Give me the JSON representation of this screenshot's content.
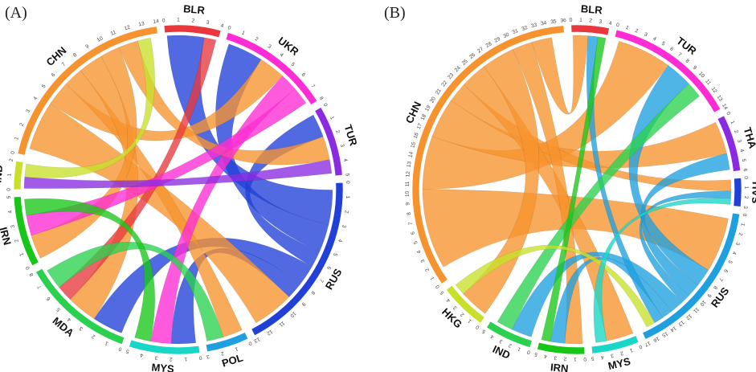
{
  "chart_data": [
    {
      "type": "chord",
      "panel": "(A)",
      "segments": [
        {
          "name": "BLR",
          "color": "#e8383d",
          "size": 4
        },
        {
          "name": "UKR",
          "color": "#ff2bd4",
          "size": 8
        },
        {
          "name": "TUR",
          "color": "#8a2be2",
          "size": 5
        },
        {
          "name": "RUS",
          "color": "#2040d8",
          "size": 13
        },
        {
          "name": "POL",
          "color": "#1ea0e0",
          "size": 3
        },
        {
          "name": "MYS",
          "color": "#18d6c8",
          "size": 5
        },
        {
          "name": "MDA",
          "color": "#2ad14e",
          "size": 8
        },
        {
          "name": "IRN",
          "color": "#18c618",
          "size": 5
        },
        {
          "name": "IND",
          "color": "#c8e02a",
          "size": 2
        },
        {
          "name": "CHN",
          "color": "#f7932e",
          "size": 14
        }
      ],
      "flows": [
        {
          "from": "RUS",
          "to": "BLR",
          "value": 2.5
        },
        {
          "from": "RUS",
          "to": "UKR",
          "value": 2
        },
        {
          "from": "RUS",
          "to": "TUR",
          "value": 1.2
        },
        {
          "from": "RUS",
          "to": "MDA",
          "value": 1.5
        },
        {
          "from": "RUS",
          "to": "MYS",
          "value": 1.2
        },
        {
          "from": "CHN",
          "to": "RUS",
          "value": 3
        },
        {
          "from": "CHN",
          "to": "UKR",
          "value": 1.5
        },
        {
          "from": "CHN",
          "to": "POL",
          "value": 1.2
        },
        {
          "from": "CHN",
          "to": "MDA",
          "value": 1.5
        },
        {
          "from": "CHN",
          "to": "IRN",
          "value": 1.2
        },
        {
          "from": "CHN",
          "to": "TUR",
          "value": 1.2
        },
        {
          "from": "BLR",
          "to": "MDA",
          "value": 0.8
        },
        {
          "from": "UKR",
          "to": "MYS",
          "value": 1
        },
        {
          "from": "UKR",
          "to": "IRN",
          "value": 1
        },
        {
          "from": "TUR",
          "to": "IND",
          "value": 0.7
        },
        {
          "from": "MDA",
          "to": "POL",
          "value": 1
        },
        {
          "from": "IRN",
          "to": "MYS",
          "value": 0.8
        },
        {
          "from": "IND",
          "to": "CHN",
          "value": 0.8
        }
      ]
    },
    {
      "type": "chord",
      "panel": "(B)",
      "segments": [
        {
          "name": "BLR",
          "color": "#e8383d",
          "size": 4
        },
        {
          "name": "TUR",
          "color": "#ff2bd4",
          "size": 14
        },
        {
          "name": "THA",
          "color": "#8a2be2",
          "size": 6
        },
        {
          "name": "SAU",
          "color": "#2040d8",
          "size": 3
        },
        {
          "name": "RUS",
          "color": "#1ea0e0",
          "size": 17
        },
        {
          "name": "MYS",
          "color": "#18d6c8",
          "size": 5
        },
        {
          "name": "IRN",
          "color": "#18c618",
          "size": 5
        },
        {
          "name": "IND",
          "color": "#2ad14e",
          "size": 5
        },
        {
          "name": "HKG",
          "color": "#c8e02a",
          "size": 5
        },
        {
          "name": "CHN",
          "color": "#f7932e",
          "size": 36
        }
      ],
      "flows": [
        {
          "from": "CHN",
          "to": "RUS",
          "value": 6
        },
        {
          "from": "CHN",
          "to": "TUR",
          "value": 4
        },
        {
          "from": "CHN",
          "to": "THA",
          "value": 3
        },
        {
          "from": "CHN",
          "to": "SAU",
          "value": 1.5
        },
        {
          "from": "CHN",
          "to": "MYS",
          "value": 2
        },
        {
          "from": "CHN",
          "to": "HKG",
          "value": 2.5
        },
        {
          "from": "CHN",
          "to": "IRN",
          "value": 1.5
        },
        {
          "from": "CHN",
          "to": "BLR",
          "value": 1.5
        },
        {
          "from": "RUS",
          "to": "TUR",
          "value": 2
        },
        {
          "from": "RUS",
          "to": "THA",
          "value": 1.5
        },
        {
          "from": "RUS",
          "to": "SAU",
          "value": 1
        },
        {
          "from": "RUS",
          "to": "IND",
          "value": 1.5
        },
        {
          "from": "RUS",
          "to": "IRN",
          "value": 1.2
        },
        {
          "from": "RUS",
          "to": "BLR",
          "value": 1
        },
        {
          "from": "IND",
          "to": "TUR",
          "value": 1.2
        },
        {
          "from": "IRN",
          "to": "BLR",
          "value": 0.8
        },
        {
          "from": "HKG",
          "to": "RUS",
          "value": 1
        },
        {
          "from": "MYS",
          "to": "SAU",
          "value": 0.8
        }
      ]
    }
  ]
}
